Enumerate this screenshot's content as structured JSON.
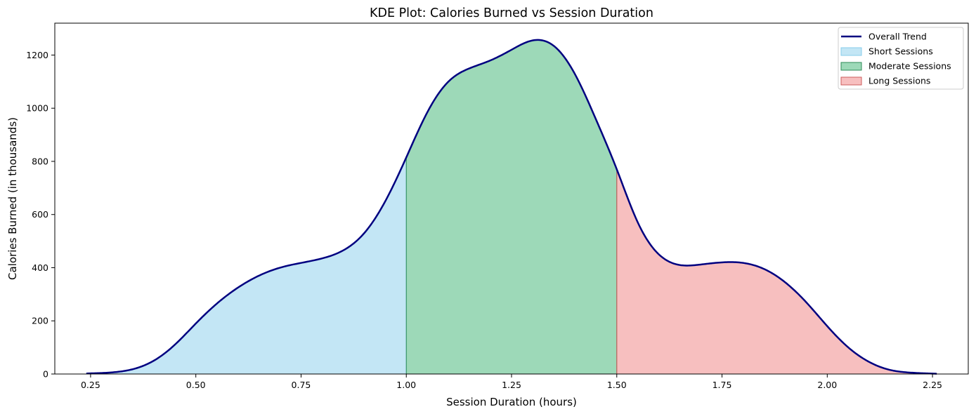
{
  "chart_data": {
    "type": "area",
    "title": "KDE Plot: Calories Burned vs Session Duration",
    "xlabel": "Session Duration (hours)",
    "ylabel": "Calories Burned (in thousands)",
    "xlim": [
      0.165,
      2.335
    ],
    "ylim": [
      0,
      1320
    ],
    "xticks": [
      0.25,
      0.5,
      0.75,
      1.0,
      1.25,
      1.5,
      1.75,
      2.0,
      2.25
    ],
    "xtick_labels": [
      "0.25",
      "0.50",
      "0.75",
      "1.00",
      "1.25",
      "1.50",
      "1.75",
      "2.00",
      "2.25"
    ],
    "yticks": [
      0,
      200,
      400,
      600,
      800,
      1000,
      1200
    ],
    "ytick_labels": [
      "0",
      "200",
      "400",
      "600",
      "800",
      "1000",
      "1200"
    ],
    "legend_position": "top-right",
    "curve": {
      "name": "Overall Trend",
      "color": "#000080",
      "x": [
        0.24,
        0.3,
        0.35,
        0.4,
        0.45,
        0.5,
        0.55,
        0.6,
        0.65,
        0.7,
        0.75,
        0.8,
        0.85,
        0.9,
        0.95,
        1.0,
        1.05,
        1.1,
        1.15,
        1.2,
        1.25,
        1.3,
        1.35,
        1.4,
        1.45,
        1.5,
        1.55,
        1.6,
        1.65,
        1.7,
        1.75,
        1.8,
        1.85,
        1.9,
        1.95,
        2.0,
        2.05,
        2.1,
        2.15,
        2.2,
        2.26
      ],
      "y": [
        2,
        6,
        18,
        50,
        110,
        190,
        265,
        325,
        370,
        400,
        418,
        435,
        465,
        530,
        650,
        815,
        985,
        1100,
        1150,
        1180,
        1220,
        1255,
        1235,
        1130,
        960,
        770,
        570,
        450,
        410,
        412,
        420,
        418,
        395,
        345,
        270,
        180,
        100,
        45,
        15,
        5,
        1
      ]
    },
    "regions": [
      {
        "name": "Short Sessions",
        "from": 0.24,
        "to": 1.0,
        "fill": "#87CEEB",
        "edge": "#87CEEB",
        "alpha": 0.5
      },
      {
        "name": "Moderate Sessions",
        "from": 1.0,
        "to": 1.5,
        "fill": "#3CB371",
        "edge": "#2E8B57",
        "alpha": 0.5
      },
      {
        "name": "Long Sessions",
        "from": 1.5,
        "to": 2.26,
        "fill": "#F08080",
        "edge": "#CD5C5C",
        "alpha": 0.5
      }
    ]
  }
}
